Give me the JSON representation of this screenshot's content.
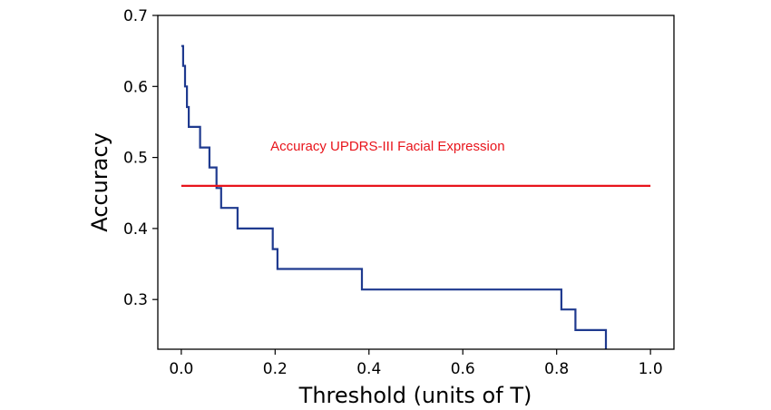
{
  "chart_data": {
    "type": "line",
    "title": "",
    "xlabel": "Threshold (units of T)",
    "ylabel": "Accuracy",
    "xlim": [
      -0.05,
      1.05
    ],
    "ylim": [
      0.23,
      0.7
    ],
    "xticks": [
      0.0,
      0.2,
      0.4,
      0.6,
      0.8,
      1.0
    ],
    "xtick_labels": [
      "0.0",
      "0.2",
      "0.4",
      "0.6",
      "0.8",
      "1.0"
    ],
    "yticks": [
      0.3,
      0.4,
      0.5,
      0.6,
      0.7
    ],
    "ytick_labels": [
      "0.3",
      "0.4",
      "0.5",
      "0.6",
      "0.7"
    ],
    "grid": false,
    "legend": "none",
    "series": [
      {
        "style": "step",
        "color": "#1f3a8f",
        "x": [
          0.0,
          0.004,
          0.008,
          0.012,
          0.016,
          0.04,
          0.06,
          0.075,
          0.085,
          0.12,
          0.195,
          0.205,
          0.385,
          0.81,
          0.84,
          0.905,
          1.0
        ],
        "y": [
          0.657,
          0.629,
          0.6,
          0.571,
          0.543,
          0.514,
          0.486,
          0.457,
          0.429,
          0.4,
          0.371,
          0.343,
          0.314,
          0.286,
          0.257,
          0.229,
          0.229
        ]
      },
      {
        "style": "hline",
        "color": "#e8141b",
        "x": [
          0.0,
          1.0
        ],
        "y": [
          0.46,
          0.46
        ]
      }
    ],
    "annotations": [
      {
        "text": "Accuracy UPDRS-III Facial Expression",
        "x": 0.19,
        "y": 0.51,
        "color": "#e8141b"
      }
    ]
  }
}
